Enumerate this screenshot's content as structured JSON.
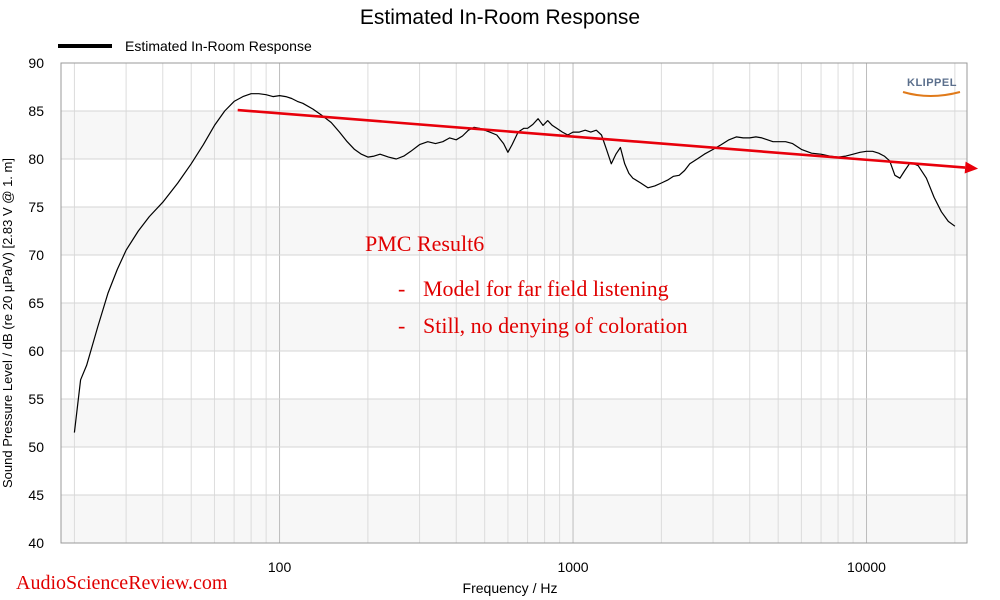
{
  "chart_data": {
    "type": "line",
    "title": "Estimated In-Room Response",
    "xlabel": "Frequency / Hz",
    "ylabel": "Sound Pressure Level / dB (re 20 µPa/V)  [2.83  V @ 1. m]",
    "xscale": "log",
    "xlim": [
      18,
      22000
    ],
    "ylim": [
      40,
      90
    ],
    "yticks": [
      40,
      45,
      50,
      55,
      60,
      65,
      70,
      75,
      80,
      85,
      90
    ],
    "xtick_labels": [
      {
        "value": 100,
        "label": "100"
      },
      {
        "value": 1000,
        "label": "1000"
      },
      {
        "value": 10000,
        "label": "10000"
      }
    ],
    "legend": {
      "placement": "top-left",
      "entries": [
        "Estimated In-Room Response"
      ]
    },
    "series": [
      {
        "name": "Estimated In-Room Response",
        "color": "#000000",
        "x": [
          20,
          21,
          22,
          24,
          26,
          28,
          30,
          33,
          36,
          40,
          45,
          50,
          55,
          60,
          65,
          70,
          75,
          80,
          85,
          90,
          95,
          100,
          105,
          110,
          115,
          120,
          130,
          140,
          150,
          160,
          170,
          180,
          190,
          200,
          210,
          220,
          235,
          250,
          265,
          280,
          300,
          320,
          340,
          360,
          380,
          400,
          420,
          440,
          460,
          480,
          500,
          520,
          550,
          580,
          600,
          620,
          650,
          680,
          700,
          730,
          760,
          790,
          820,
          850,
          880,
          920,
          960,
          1000,
          1050,
          1100,
          1150,
          1200,
          1250,
          1300,
          1350,
          1400,
          1450,
          1500,
          1550,
          1600,
          1700,
          1800,
          1900,
          2000,
          2100,
          2200,
          2300,
          2400,
          2500,
          2650,
          2800,
          3000,
          3200,
          3400,
          3600,
          3800,
          4000,
          4200,
          4400,
          4600,
          4800,
          5000,
          5300,
          5600,
          6000,
          6500,
          7000,
          7500,
          8000,
          8500,
          9000,
          9500,
          10000,
          10500,
          11000,
          11500,
          12000,
          12500,
          13000,
          13500,
          14000,
          14500,
          15000,
          16000,
          17000,
          18000,
          19000,
          20000
        ],
        "values": [
          51.5,
          57,
          58.5,
          62.5,
          66,
          68.5,
          70.5,
          72.5,
          74,
          75.5,
          77.5,
          79.5,
          81.5,
          83.5,
          85,
          86,
          86.5,
          86.8,
          86.8,
          86.7,
          86.5,
          86.6,
          86.5,
          86.3,
          86,
          85.8,
          85.2,
          84.5,
          83.8,
          82.8,
          81.8,
          81,
          80.5,
          80.2,
          80.3,
          80.5,
          80.2,
          80,
          80.3,
          80.8,
          81.5,
          81.8,
          81.6,
          81.8,
          82.2,
          82,
          82.4,
          83,
          83.3,
          83.2,
          83,
          82.8,
          82.5,
          81.6,
          80.7,
          81.5,
          82.8,
          83.2,
          83.2,
          83.6,
          84.2,
          83.5,
          84,
          83.5,
          83.2,
          82.8,
          82.5,
          82.8,
          82.8,
          83,
          82.8,
          83,
          82.5,
          81,
          79.5,
          80.5,
          81.2,
          79.5,
          78.5,
          78,
          77.5,
          77,
          77.2,
          77.5,
          77.8,
          78.2,
          78.3,
          78.8,
          79.5,
          80,
          80.5,
          81,
          81.5,
          82,
          82.3,
          82.2,
          82.2,
          82.3,
          82.2,
          82,
          81.8,
          81.8,
          81.8,
          81.6,
          81,
          80.6,
          80.5,
          80.3,
          80.2,
          80.3,
          80.5,
          80.7,
          80.8,
          80.8,
          80.6,
          80.3,
          79.8,
          78.3,
          78,
          78.8,
          79.5,
          79.5,
          79.3,
          78,
          76,
          74.5,
          73.5,
          73
        ]
      }
    ],
    "trend_line": {
      "color": "#e8000b",
      "x": [
        72,
        24000
      ],
      "values": [
        85.1,
        79
      ]
    }
  },
  "annotations": {
    "heading": "PMC Result6",
    "bullets": [
      {
        "dash": "-",
        "text": "Model for far field listening"
      },
      {
        "dash": "-",
        "text": "Still, no denying of coloration"
      }
    ]
  },
  "watermark": "AudioScienceReview.com",
  "logo": "KLIPPEL"
}
